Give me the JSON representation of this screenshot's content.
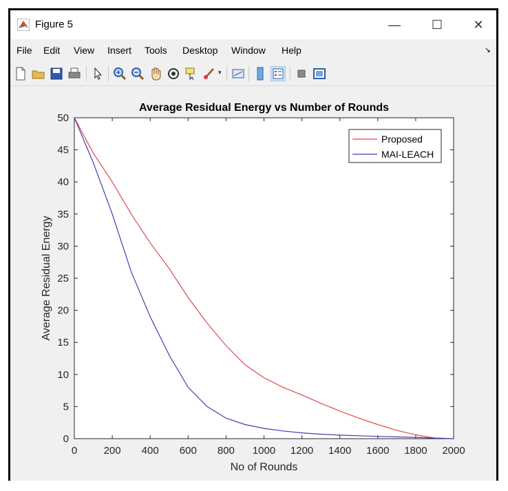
{
  "window": {
    "title": "Figure 5",
    "minimize_label": "—",
    "maximize_label": "☐",
    "close_label": "✕"
  },
  "menu": [
    "File",
    "Edit",
    "View",
    "Insert",
    "Tools",
    "Desktop",
    "Window",
    "Help"
  ],
  "toolbar_icons": [
    "new-figure-icon",
    "open-file-icon",
    "save-icon",
    "print-icon",
    "pointer-icon",
    "zoom-in-icon",
    "zoom-out-icon",
    "pan-icon",
    "rotate-3d-icon",
    "data-cursor-icon",
    "brush-icon",
    "link-plot-icon",
    "colorbar-icon",
    "legend-icon",
    "hide-plot-tools-icon",
    "show-plot-tools-icon"
  ],
  "chart_data": {
    "type": "line",
    "title": "Average Residual Energy vs Number of Rounds",
    "xlabel": "No of Rounds",
    "ylabel": "Average Residual Energy",
    "xlim": [
      0,
      2000
    ],
    "ylim": [
      0,
      50
    ],
    "xticks": [
      0,
      200,
      400,
      600,
      800,
      1000,
      1200,
      1400,
      1600,
      1800,
      2000
    ],
    "yticks": [
      0,
      5,
      10,
      15,
      20,
      25,
      30,
      35,
      40,
      45,
      50
    ],
    "grid": false,
    "legend_position": "top-right",
    "series": [
      {
        "name": "Proposed",
        "color": "#e0474c",
        "x": [
          0,
          100,
          200,
          300,
          400,
          500,
          600,
          700,
          800,
          900,
          1000,
          1100,
          1200,
          1300,
          1400,
          1500,
          1600,
          1700,
          1800,
          1900,
          2000
        ],
        "y": [
          50,
          44.5,
          40,
          35,
          30.5,
          26.5,
          22,
          18,
          14.5,
          11.5,
          9.5,
          8,
          6.8,
          5.5,
          4.3,
          3.2,
          2.2,
          1.3,
          0.6,
          0.1,
          0
        ]
      },
      {
        "name": "MAI-LEACH",
        "color": "#3f3fb0",
        "x": [
          0,
          100,
          200,
          300,
          400,
          500,
          600,
          700,
          800,
          900,
          1000,
          1100,
          1200,
          1300,
          1400,
          1500,
          1600,
          1700,
          1800,
          1900,
          2000
        ],
        "y": [
          50,
          43,
          35,
          26,
          19,
          13,
          8,
          5,
          3.2,
          2.2,
          1.6,
          1.2,
          0.9,
          0.7,
          0.55,
          0.45,
          0.35,
          0.28,
          0.2,
          0.1,
          0
        ]
      }
    ]
  }
}
